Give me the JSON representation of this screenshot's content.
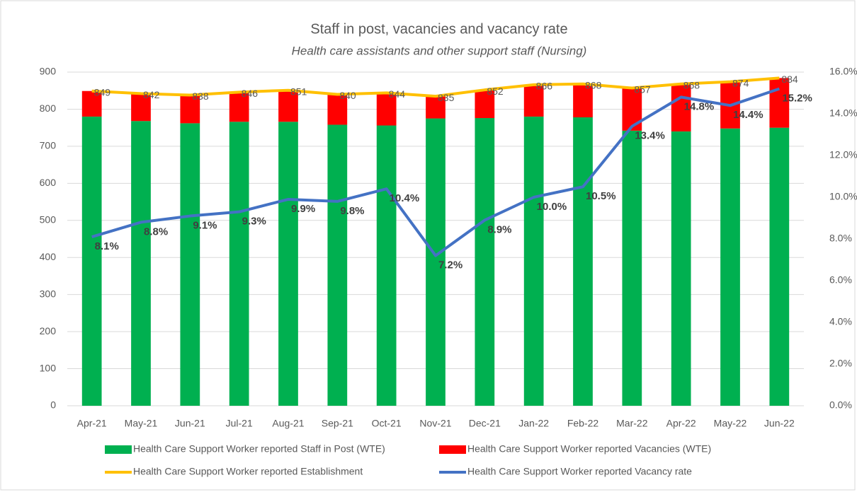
{
  "chart_data": {
    "type": "bar",
    "title": "Staff in post, vacancies and vacancy rate",
    "subtitle": "Health care assistants and other support staff (Nursing)",
    "categories": [
      "Apr-21",
      "May-21",
      "Jun-21",
      "Jul-21",
      "Aug-21",
      "Sep-21",
      "Oct-21",
      "Nov-21",
      "Dec-21",
      "Jan-22",
      "Feb-22",
      "Mar-22",
      "Apr-22",
      "May-22",
      "Jun-22"
    ],
    "series": [
      {
        "name": "Health Care Support Worker reported Staff in Post (WTE)",
        "type": "bar",
        "stacked": true,
        "color": "#00b050",
        "values": [
          780,
          768,
          762,
          766,
          766,
          758,
          756,
          775,
          776,
          780,
          778,
          742,
          740,
          748,
          750
        ]
      },
      {
        "name": "Health Care Support Worker reported Vacancies (WTE)",
        "type": "bar",
        "stacked": true,
        "color": "#ff0000",
        "values": [
          69,
          74,
          76,
          80,
          85,
          82,
          88,
          60,
          76,
          86,
          90,
          115,
          128,
          126,
          134
        ]
      },
      {
        "name": "Health Care Support Worker reported Establishment",
        "type": "line",
        "color": "#ffc000",
        "values": [
          849,
          842,
          838,
          846,
          851,
          840,
          844,
          835,
          852,
          866,
          868,
          857,
          868,
          874,
          884
        ]
      },
      {
        "name": "Health Care Support Worker reported Vacancy rate",
        "type": "line",
        "axis": "y2",
        "color": "#4472c4",
        "values": [
          8.1,
          8.8,
          9.1,
          9.3,
          9.9,
          9.8,
          10.4,
          7.2,
          8.9,
          10.0,
          10.5,
          13.4,
          14.8,
          14.4,
          15.2
        ],
        "value_labels": [
          "8.1%",
          "8.8%",
          "9.1%",
          "9.3%",
          "9.9%",
          "9.8%",
          "10.4%",
          "7.2%",
          "8.9%",
          "10.0%",
          "10.5%",
          "13.4%",
          "14.8%",
          "14.4%",
          "15.2%"
        ]
      }
    ],
    "ylim": [
      0,
      900
    ],
    "yticks": [
      0,
      100,
      200,
      300,
      400,
      500,
      600,
      700,
      800,
      900
    ],
    "y2lim": [
      0,
      16
    ],
    "y2ticks": [
      {
        "value": 0,
        "label": "0.0%"
      },
      {
        "value": 2,
        "label": "2.0%"
      },
      {
        "value": 4,
        "label": "4.0%"
      },
      {
        "value": 6,
        "label": "6.0%"
      },
      {
        "value": 8,
        "label": "8.0%"
      },
      {
        "value": 10,
        "label": "10.0%"
      },
      {
        "value": 12,
        "label": "12.0%"
      },
      {
        "value": 14,
        "label": "14.0%"
      },
      {
        "value": 16,
        "label": "16.0%"
      }
    ],
    "grid": true
  }
}
